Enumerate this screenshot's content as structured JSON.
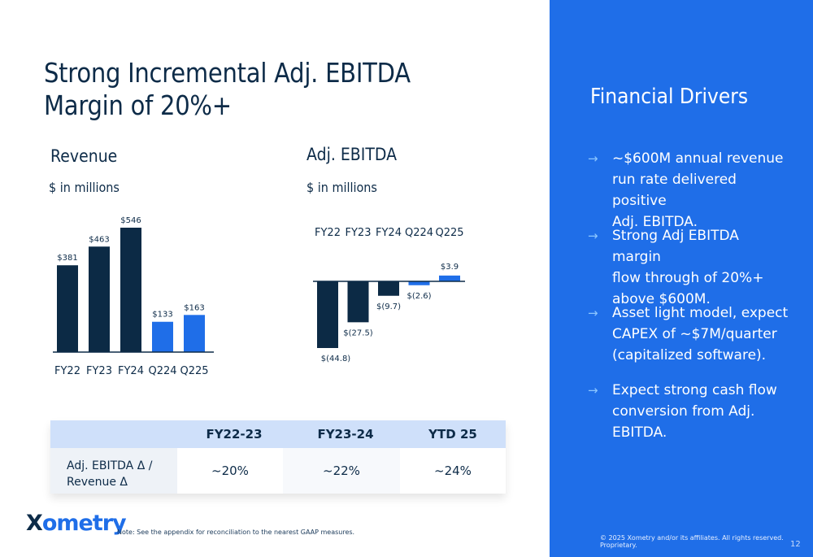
{
  "title": "Strong Incremental Adj. EBITDA Margin of 20%+",
  "revenue": {
    "title": "Revenue",
    "subtitle": "$ in millions"
  },
  "ebitda": {
    "title": "Adj. EBITDA",
    "subtitle": "$ in millions"
  },
  "chart_data": [
    {
      "type": "bar",
      "title": "Revenue",
      "subtitle": "$ in millions",
      "categories": [
        "FY22",
        "FY23",
        "FY24",
        "Q224",
        "Q225"
      ],
      "values": [
        381,
        463,
        546,
        133,
        163
      ],
      "labels": [
        "$381",
        "$463",
        "$546",
        "$133",
        "$163"
      ],
      "colors": [
        "#0c2a45",
        "#0c2a45",
        "#0c2a45",
        "#1f6ee8",
        "#1f6ee8"
      ],
      "ylim": [
        0,
        546
      ],
      "grid": false
    },
    {
      "type": "bar",
      "title": "Adj. EBITDA",
      "subtitle": "$ in millions",
      "categories": [
        "FY22",
        "FY23",
        "FY24",
        "Q224",
        "Q225"
      ],
      "values": [
        -44.8,
        -27.5,
        -9.7,
        -2.6,
        3.9
      ],
      "labels": [
        "$(44.8)",
        "$(27.5)",
        "$(9.7)",
        "$(2.6)",
        "$3.9"
      ],
      "colors": [
        "#0c2a45",
        "#0c2a45",
        "#0c2a45",
        "#1f6ee8",
        "#1f6ee8"
      ],
      "ylim": [
        -44.8,
        3.9
      ],
      "grid": false
    }
  ],
  "table": {
    "headers": [
      "FY22-23",
      "FY23-24",
      "YTD 25"
    ],
    "row_label": "Adj. EBITDA Δ / Revenue Δ",
    "row_label_lines": [
      "Adj. EBITDA Δ /",
      "Revenue Δ"
    ],
    "values": [
      "~20%",
      "~22%",
      "~24%"
    ]
  },
  "logo": {
    "text": "xometry",
    "mark": "X"
  },
  "note": "Note: See the appendix for reconciliation to the nearest GAAP measures.",
  "drivers": {
    "title": "Financial Drivers",
    "arrow": "→",
    "items": [
      {
        "lines": [
          "~$600M annual revenue",
          "run rate delivered positive",
          "Adj. EBITDA."
        ]
      },
      {
        "lines": [
          "Strong Adj EBITDA margin",
          "flow through of 20%+",
          "above $600M."
        ]
      },
      {
        "lines": [
          "Asset light model, expect",
          "CAPEX of ~$7M/quarter",
          "(capitalized software)."
        ]
      },
      {
        "lines": [
          "Expect strong cash flow",
          "conversion from Adj.",
          "EBITDA."
        ]
      }
    ]
  },
  "copyright": "© 2025 Xometry and/or its affiliates. All rights reserved. Proprietary.",
  "page_number": "12",
  "colors": {
    "navy": "#0c2a45",
    "blue": "#1f6ee8",
    "light_blue": "#cfe0fa",
    "arrow": "#8cc6ff"
  }
}
